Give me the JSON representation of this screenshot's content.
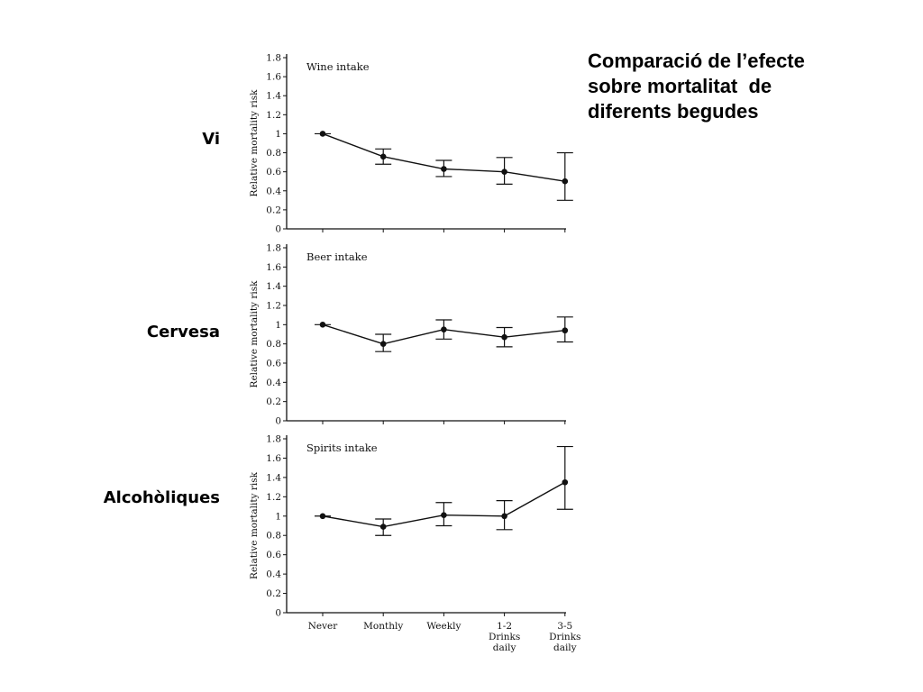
{
  "title_lines": [
    "Comparació de l’efecte",
    "sobre mortalitat  de",
    "diferents begudes"
  ],
  "side_labels": {
    "wine": "Vi",
    "beer": "Cervesa",
    "spirits": "Alcohòliques"
  },
  "chart_data": [
    {
      "type": "line",
      "title": "Wine intake",
      "ylabel": "Relative mortality risk",
      "categories": [
        "Never",
        "Monthly",
        "Weekly",
        "1-2 Drinks daily",
        "3-5 Drinks daily"
      ],
      "series": [
        {
          "values": [
            1.0,
            0.76,
            0.63,
            0.6,
            0.5
          ],
          "error_low": [
            1.0,
            0.68,
            0.55,
            0.47,
            0.3
          ],
          "error_high": [
            1.0,
            0.84,
            0.72,
            0.75,
            0.8
          ]
        }
      ],
      "yticks": [
        "0",
        "0.2",
        "0.4",
        "0.6",
        "0.8",
        "1",
        "1.2",
        "1.4",
        "1.6",
        "1.8"
      ],
      "ylim": [
        0,
        1.8
      ]
    },
    {
      "type": "line",
      "title": "Beer intake",
      "ylabel": "Relative mortality risk",
      "categories": [
        "Never",
        "Monthly",
        "Weekly",
        "1-2 Drinks daily",
        "3-5 Drinks daily"
      ],
      "series": [
        {
          "values": [
            1.0,
            0.8,
            0.95,
            0.87,
            0.94
          ],
          "error_low": [
            1.0,
            0.72,
            0.85,
            0.77,
            0.82
          ],
          "error_high": [
            1.0,
            0.9,
            1.05,
            0.97,
            1.08
          ]
        }
      ],
      "yticks": [
        "0",
        "0.2",
        "0.4",
        "0.6",
        "0.8",
        "1",
        "1.2",
        "1.4",
        "1.6",
        "1.8"
      ],
      "ylim": [
        0,
        1.8
      ]
    },
    {
      "type": "line",
      "title": "Spirits intake",
      "ylabel": "Relative mortality risk",
      "categories": [
        "Never",
        "Monthly",
        "Weekly",
        "1-2 Drinks daily",
        "3-5 Drinks daily"
      ],
      "series": [
        {
          "values": [
            1.0,
            0.89,
            1.01,
            1.0,
            1.35
          ],
          "error_low": [
            1.0,
            0.8,
            0.9,
            0.86,
            1.07
          ],
          "error_high": [
            1.0,
            0.97,
            1.14,
            1.16,
            1.72
          ]
        }
      ],
      "yticks": [
        "0",
        "0.2",
        "0.4",
        "0.6",
        "0.8",
        "1",
        "1.2",
        "1.4",
        "1.6",
        "1.8"
      ],
      "ylim": [
        0,
        1.8
      ]
    }
  ]
}
